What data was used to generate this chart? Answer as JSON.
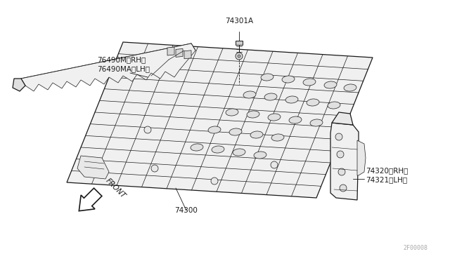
{
  "bg_color": "#ffffff",
  "line_color": "#1a1a1a",
  "fig_width": 6.4,
  "fig_height": 3.72,
  "dpi": 100,
  "watermark": "2F00008",
  "labels": {
    "part_76490M": "76490M（RH）",
    "part_76490MA": "76490MA（LH）",
    "part_74301A": "74301A",
    "part_74300": "74300",
    "part_74320": "74320（RH）",
    "part_74321": "74321（LH）",
    "front": "FRONT"
  }
}
